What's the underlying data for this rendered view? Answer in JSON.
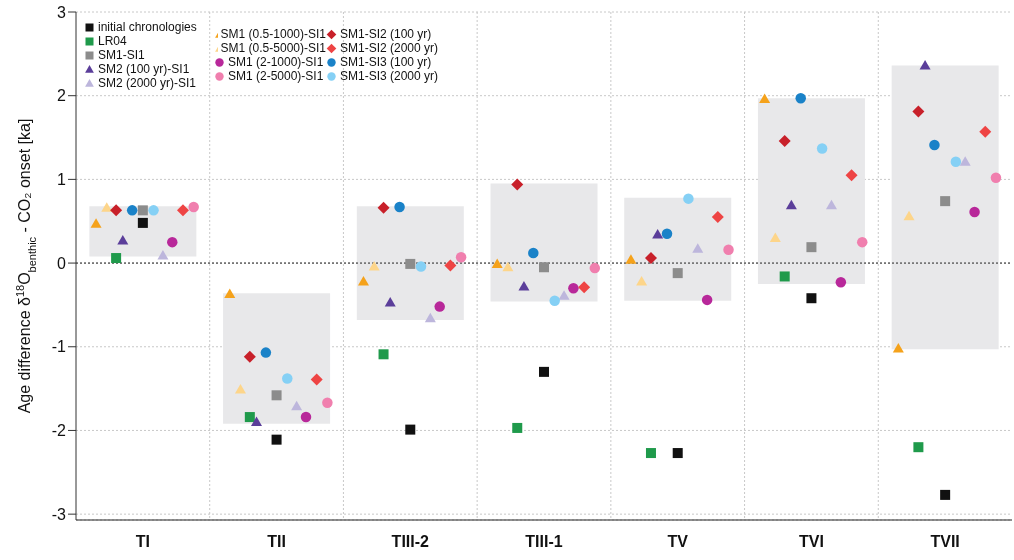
{
  "chart_data": {
    "type": "scatter",
    "ylabel": "Age difference δ$^{18}$O$_{benthic}$ - CO₂ onset [ka]",
    "categories": [
      "TI",
      "TII",
      "TIII-2",
      "TIII-1",
      "TV",
      "TVI",
      "TVII"
    ],
    "ylim": [
      -3.07,
      3
    ],
    "yticks": [
      -3,
      -2,
      -1,
      0,
      1,
      2,
      3
    ],
    "grid": true,
    "legend": "top left",
    "ref_lines": [
      {
        "axis": "y",
        "value": 0,
        "color": "#222222",
        "line_style": "dotted"
      }
    ],
    "series": [
      {
        "type": "bar",
        "color": "#e8e8ea",
        "base": [
          0.08,
          -1.92,
          -0.68,
          -0.46,
          -0.45,
          -0.25,
          -1.03
        ],
        "values": [
          0.6,
          1.56,
          1.36,
          1.41,
          1.23,
          2.22,
          3.39
        ]
      },
      {
        "name": "initial chronologies",
        "color": "#111111",
        "marker": "square",
        "values": [
          0.48,
          -2.11,
          -1.99,
          -1.3,
          -2.27,
          -0.42,
          -2.77
        ]
      },
      {
        "name": "LR04",
        "color": "#1f9a4b",
        "marker": "square",
        "values": [
          0.06,
          -1.84,
          -1.09,
          -1.97,
          -2.27,
          -0.16,
          -2.2
        ]
      },
      {
        "name": "SM1-SI1",
        "color": "#8c8c8c",
        "marker": "square",
        "values": [
          0.63,
          -1.58,
          -0.01,
          -0.05,
          -0.12,
          0.19,
          0.74
        ]
      },
      {
        "name": "SM2 (100 yr)-SI1",
        "color": "#5b3e9a",
        "marker": "triangle",
        "values": [
          0.27,
          -1.9,
          -0.47,
          -0.28,
          0.34,
          0.69,
          2.36
        ]
      },
      {
        "name": "SM2 (2000 yr)-SI1",
        "color": "#bdb6dc",
        "marker": "triangle",
        "values": [
          0.09,
          -1.71,
          -0.66,
          -0.39,
          0.17,
          0.69,
          1.21
        ]
      },
      {
        "name": "SM1 (0.5-1000)-SI1",
        "color": "#f5a21b",
        "marker": "triangle",
        "values": [
          0.47,
          -0.37,
          -0.22,
          -0.01,
          0.04,
          1.96,
          -1.02
        ]
      },
      {
        "name": "SM1 (0.5-5000)-SI1",
        "color": "#fdd58a",
        "marker": "triangle",
        "values": [
          0.66,
          -1.51,
          -0.04,
          -0.05,
          -0.22,
          0.3,
          0.56
        ]
      },
      {
        "name": "SM1 (2-1000)-SI1",
        "color": "#b8289a",
        "marker": "circle",
        "values": [
          0.25,
          -1.84,
          -0.52,
          -0.3,
          -0.44,
          -0.23,
          0.61
        ]
      },
      {
        "name": "SM1 (2-5000)-SI1",
        "color": "#f07fae",
        "marker": "circle",
        "values": [
          0.67,
          -1.67,
          0.07,
          -0.06,
          0.16,
          0.25,
          1.02
        ]
      },
      {
        "name": "SM1-SI2 (100 yr)",
        "color": "#c8202a",
        "marker": "diamond",
        "values": [
          0.63,
          -1.12,
          0.66,
          0.94,
          0.06,
          1.46,
          1.81
        ]
      },
      {
        "name": "SM1-SI2 (2000 yr)",
        "color": "#ee4444",
        "marker": "diamond",
        "values": [
          0.63,
          -1.39,
          -0.03,
          -0.29,
          0.55,
          1.05,
          1.57
        ]
      },
      {
        "name": "SM1-SI3 (100 yr)",
        "color": "#1a82c8",
        "marker": "circle",
        "values": [
          0.63,
          -1.07,
          0.67,
          0.12,
          0.35,
          1.97,
          1.41
        ]
      },
      {
        "name": "SM1-SI3 (2000 yr)",
        "color": "#85d0f5",
        "marker": "circle",
        "values": [
          0.63,
          -1.38,
          -0.04,
          -0.45,
          0.77,
          1.37,
          1.21
        ]
      }
    ]
  }
}
